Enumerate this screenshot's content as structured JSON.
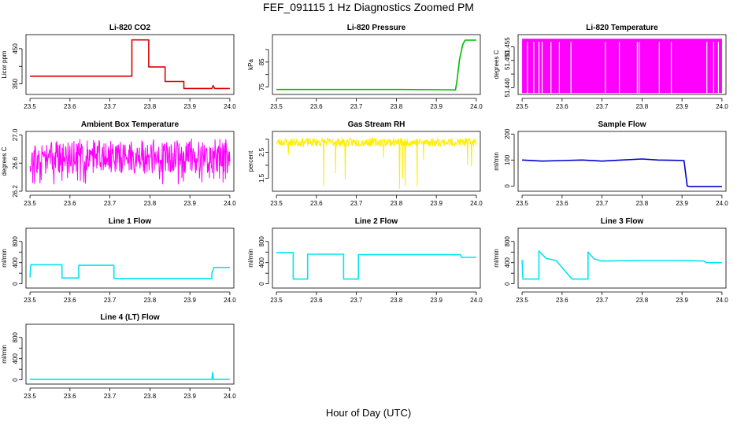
{
  "figure": {
    "title": "FEF_091115  1 Hz Diagnostics Zoomed PM",
    "xlabel": "Hour of Day (UTC)"
  },
  "colors": {
    "red": "#dd0000",
    "green": "#00bb00",
    "magenta": "#ff00ff",
    "yellow": "#ffee00",
    "blue": "#0000cc",
    "cyan": "#00e5ee"
  },
  "chart_data": [
    {
      "type": "line",
      "title": "Li-820 CO2",
      "ylabel": "Licor ppm",
      "color": "red",
      "xlim": [
        23.49,
        24.01
      ],
      "ylim": [
        320,
        490
      ],
      "xticks": [
        23.5,
        23.6,
        23.7,
        23.8,
        23.9,
        24.0
      ],
      "xtick_labels": [
        "23.5",
        "23.6",
        "23.7",
        "23.8",
        "23.9",
        "24.0"
      ],
      "yticks": [
        350,
        400,
        450
      ],
      "ytick_labels": [
        "350",
        "",
        "450"
      ],
      "series": [
        {
          "x": [
            23.5,
            23.755,
            23.755,
            23.797,
            23.797,
            23.838,
            23.838,
            23.885,
            23.885,
            23.955,
            23.958,
            23.962,
            24.0
          ],
          "y": [
            372,
            372,
            475,
            475,
            398,
            398,
            357,
            357,
            337,
            337,
            345,
            337,
            337
          ]
        }
      ]
    },
    {
      "type": "line",
      "title": "Li-820 Pressure",
      "ylabel": "kPa",
      "color": "green",
      "xlim": [
        23.49,
        24.01
      ],
      "ylim": [
        72,
        96
      ],
      "xticks": [
        23.5,
        23.6,
        23.7,
        23.8,
        23.9,
        24.0
      ],
      "xtick_labels": [
        "23.5",
        "23.6",
        "23.7",
        "23.8",
        "23.9",
        "24.0"
      ],
      "yticks": [
        75,
        80,
        85,
        90
      ],
      "ytick_labels": [
        "75",
        "",
        "85",
        ""
      ],
      "series": [
        {
          "x": [
            23.5,
            23.8,
            23.92,
            23.948,
            23.952,
            23.958,
            23.962,
            23.966,
            23.972,
            24.0
          ],
          "y": [
            74,
            74,
            73.9,
            73.8,
            78,
            86,
            89,
            92,
            93.8,
            93.8
          ]
        }
      ]
    },
    {
      "type": "area",
      "title": "Li-820 Temperature",
      "ylabel": "degrees C",
      "color": "magenta",
      "xlim": [
        23.49,
        24.01
      ],
      "ylim": [
        51.4375,
        51.4595
      ],
      "xticks": [
        23.5,
        23.6,
        23.7,
        23.8,
        23.9,
        24.0
      ],
      "xtick_labels": [
        "23.5",
        "23.6",
        "23.7",
        "23.8",
        "23.9",
        "24.0"
      ],
      "yticks": [
        51.44,
        51.445,
        51.45,
        51.455
      ],
      "ytick_labels": [
        "51.440",
        "",
        "51.450",
        "51.455"
      ],
      "range": [
        51.438,
        51.458
      ],
      "gaps": [
        23.512,
        23.528,
        23.541,
        23.549,
        23.571,
        23.592,
        23.621,
        23.707,
        23.742,
        23.787,
        23.792,
        23.842,
        23.872,
        23.961,
        23.978,
        23.99
      ]
    },
    {
      "type": "line",
      "title": "Ambient Box Temperature",
      "ylabel": "degrees C",
      "color": "magenta",
      "xlim": [
        23.49,
        24.01
      ],
      "ylim": [
        26.2,
        27.05
      ],
      "xticks": [
        23.5,
        23.6,
        23.7,
        23.8,
        23.9,
        24.0
      ],
      "xtick_labels": [
        "23.5",
        "23.6",
        "23.7",
        "23.8",
        "23.9",
        "24.0"
      ],
      "yticks": [
        26.2,
        26.6,
        27.0
      ],
      "ytick_labels": [
        "26.2",
        "26.6",
        "27.0"
      ],
      "noise": {
        "seed": 11,
        "base": 26.7,
        "band": [
          26.45,
          26.9
        ],
        "spike_max": 26.95,
        "spike_min": 26.28,
        "n": 500
      }
    },
    {
      "type": "line",
      "title": "Gas Stream RH",
      "ylabel": "percent",
      "color": "yellow",
      "xlim": [
        23.49,
        24.01
      ],
      "ylim": [
        1.0,
        3.3
      ],
      "xticks": [
        23.5,
        23.6,
        23.7,
        23.8,
        23.9,
        24.0
      ],
      "xtick_labels": [
        "23.5",
        "23.6",
        "23.7",
        "23.8",
        "23.9",
        "24.0"
      ],
      "yticks": [
        1.5,
        2.0,
        2.5,
        3.0
      ],
      "ytick_labels": [
        "1.5",
        "",
        "2.5",
        ""
      ],
      "noise": {
        "seed": 23,
        "base": 2.88,
        "band": [
          2.72,
          3.05
        ],
        "n": 500,
        "dips": [
          [
            23.53,
            2.4
          ],
          [
            23.618,
            1.2
          ],
          [
            23.648,
            1.7
          ],
          [
            23.672,
            1.45
          ],
          [
            23.768,
            2.3
          ],
          [
            23.808,
            1.1
          ],
          [
            23.816,
            1.5
          ],
          [
            23.822,
            1.2
          ],
          [
            23.852,
            1.2
          ],
          [
            23.868,
            2.2
          ],
          [
            23.978,
            2.0
          ],
          [
            23.988,
            1.95
          ]
        ]
      }
    },
    {
      "type": "line",
      "title": "Sample Flow",
      "ylabel": "ml/min",
      "color": "blue",
      "xlim": [
        23.49,
        24.01
      ],
      "ylim": [
        -20,
        210
      ],
      "xticks": [
        23.5,
        23.6,
        23.7,
        23.8,
        23.9,
        24.0
      ],
      "xtick_labels": [
        "23.5",
        "23.6",
        "23.7",
        "23.8",
        "23.9",
        "24.0"
      ],
      "yticks": [
        0,
        100,
        200
      ],
      "ytick_labels": [
        "0",
        "100",
        "200"
      ],
      "series": [
        {
          "x": [
            23.5,
            23.55,
            23.6,
            23.65,
            23.7,
            23.75,
            23.8,
            23.84,
            23.88,
            23.905,
            23.913,
            23.92,
            24.0
          ],
          "y": [
            100,
            96,
            98,
            100,
            96,
            100,
            104,
            100,
            99,
            98,
            0,
            -2,
            -2
          ]
        }
      ]
    },
    {
      "type": "line",
      "title": "Line 1 Flow",
      "ylabel": "ml/min",
      "color": "cyan",
      "xlim": [
        23.49,
        24.01
      ],
      "ylim": [
        -80,
        1050
      ],
      "xticks": [
        23.5,
        23.6,
        23.7,
        23.8,
        23.9,
        24.0
      ],
      "xtick_labels": [
        "23.5",
        "23.6",
        "23.7",
        "23.8",
        "23.9",
        "24.0"
      ],
      "yticks": [
        0,
        200,
        400,
        600,
        800
      ],
      "ytick_labels": [
        "0",
        "",
        "400",
        "",
        "800"
      ],
      "series": [
        {
          "x": [
            23.5,
            23.502,
            23.58,
            23.58,
            23.622,
            23.622,
            23.71,
            23.71,
            23.955,
            23.955,
            23.96,
            24.0
          ],
          "y": [
            120,
            360,
            360,
            110,
            110,
            350,
            350,
            100,
            100,
            200,
            310,
            310
          ]
        }
      ]
    },
    {
      "type": "line",
      "title": "Line 2 Flow",
      "ylabel": "ml/min",
      "color": "cyan",
      "xlim": [
        23.49,
        24.01
      ],
      "ylim": [
        -80,
        1050
      ],
      "xticks": [
        23.5,
        23.6,
        23.7,
        23.8,
        23.9,
        24.0
      ],
      "xtick_labels": [
        "23.5",
        "23.6",
        "23.7",
        "23.8",
        "23.9",
        "24.0"
      ],
      "yticks": [
        0,
        200,
        400,
        600,
        800
      ],
      "ytick_labels": [
        "0",
        "",
        "400",
        "",
        "800"
      ],
      "series": [
        {
          "x": [
            23.5,
            23.542,
            23.542,
            23.578,
            23.578,
            23.668,
            23.668,
            23.705,
            23.705,
            23.96,
            23.963,
            24.0
          ],
          "y": [
            590,
            590,
            90,
            90,
            560,
            560,
            90,
            90,
            550,
            550,
            500,
            500
          ]
        }
      ]
    },
    {
      "type": "line",
      "title": "Line 3 Flow",
      "ylabel": "ml/min",
      "color": "cyan",
      "xlim": [
        23.49,
        24.01
      ],
      "ylim": [
        -80,
        1050
      ],
      "xticks": [
        23.5,
        23.6,
        23.7,
        23.8,
        23.9,
        24.0
      ],
      "xtick_labels": [
        "23.5",
        "23.6",
        "23.7",
        "23.8",
        "23.9",
        "24.0"
      ],
      "yticks": [
        0,
        200,
        400,
        600,
        800
      ],
      "ytick_labels": [
        "0",
        "",
        "400",
        "",
        "800"
      ],
      "series": [
        {
          "x": [
            23.5,
            23.502,
            23.505,
            23.542,
            23.542,
            23.56,
            23.585,
            23.585,
            23.625,
            23.625,
            23.665,
            23.665,
            23.68,
            23.7,
            23.8,
            23.9,
            23.955,
            23.96,
            24.0
          ],
          "y": [
            450,
            90,
            90,
            90,
            620,
            480,
            440,
            440,
            90,
            90,
            90,
            600,
            470,
            430,
            440,
            440,
            430,
            400,
            400
          ]
        }
      ]
    },
    {
      "type": "line",
      "title": "Line 4 (LT) Flow",
      "ylabel": "ml/min",
      "color": "cyan",
      "xlim": [
        23.49,
        24.01
      ],
      "ylim": [
        -80,
        1050
      ],
      "xticks": [
        23.5,
        23.6,
        23.7,
        23.8,
        23.9,
        24.0
      ],
      "xtick_labels": [
        "23.5",
        "23.6",
        "23.7",
        "23.8",
        "23.9",
        "24.0"
      ],
      "yticks": [
        0,
        200,
        400,
        600,
        800
      ],
      "ytick_labels": [
        "0",
        "",
        "400",
        "",
        "800"
      ],
      "series": [
        {
          "x": [
            23.5,
            23.955,
            23.957,
            23.959,
            23.962,
            24.0
          ],
          "y": [
            8,
            8,
            140,
            8,
            8,
            8
          ]
        }
      ]
    }
  ]
}
